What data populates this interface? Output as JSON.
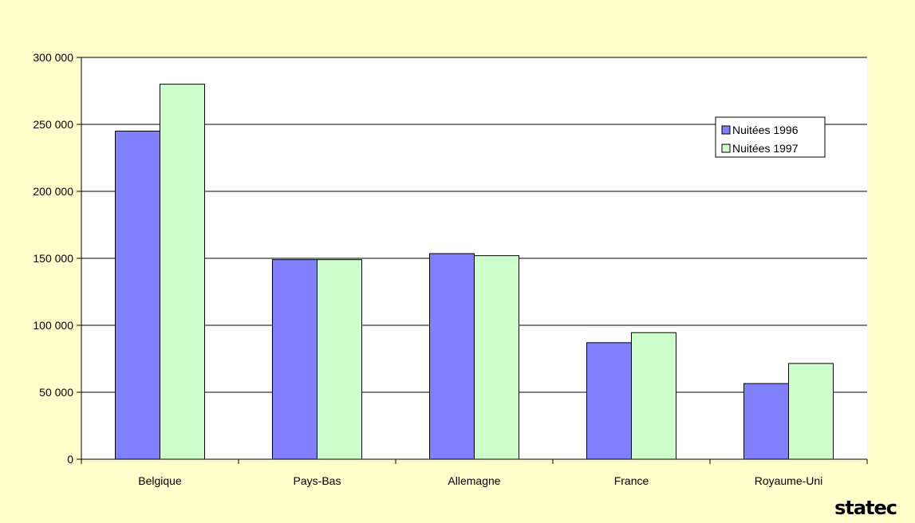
{
  "chart_data": {
    "type": "bar",
    "title": "",
    "xlabel": "",
    "ylabel": "",
    "categories": [
      "Belgique",
      "Pays-Bas",
      "Allemagne",
      "France",
      "Royaume-Uni"
    ],
    "series": [
      {
        "name": "Nuitées 1996",
        "values": [
          245000,
          149000,
          153500,
          87000,
          56500
        ],
        "color": "#8080FF"
      },
      {
        "name": "Nuitées 1997",
        "values": [
          280000,
          149000,
          152000,
          94500,
          71500
        ],
        "color": "#CCFFCC"
      }
    ],
    "ylim": [
      0,
      300000
    ],
    "yticks": [
      0,
      50000,
      100000,
      150000,
      200000,
      250000,
      300000
    ],
    "ytick_labels": [
      "0",
      "50 000",
      "100 000",
      "150 000",
      "200 000",
      "250 000",
      "300 000"
    ],
    "grid": true,
    "legend_position": "top-right",
    "background_color": "#FFFFCC",
    "plot_background_color": "#FFFFFF"
  },
  "logo": {
    "text": "statec"
  }
}
